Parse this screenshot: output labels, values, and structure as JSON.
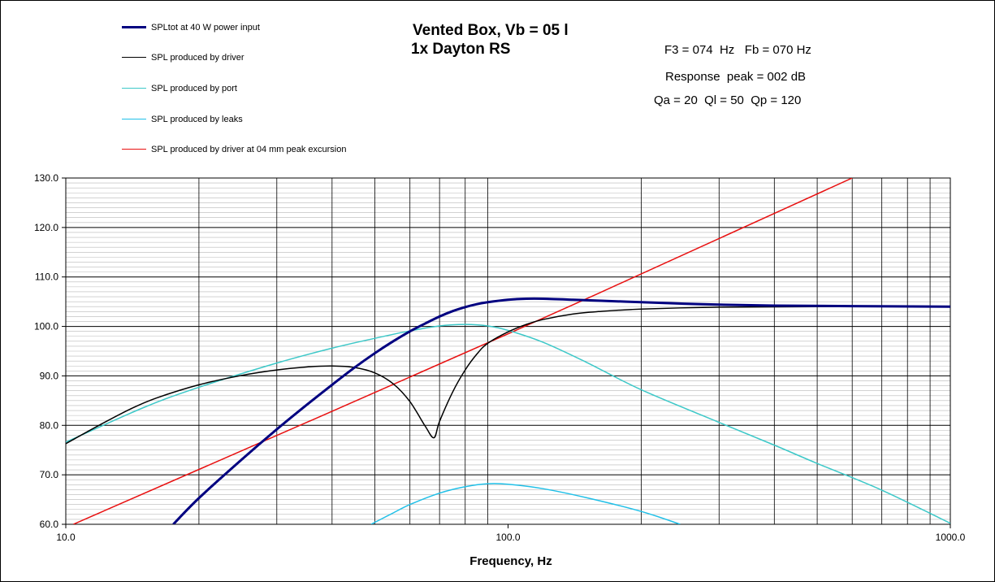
{
  "chart_data": {
    "type": "line",
    "title_line1": "Vented Box, Vb = 05 l",
    "title_line2": "1x Dayton RS",
    "info": {
      "line1": "F3 = 074  Hz   Fb = 070 Hz",
      "line2": "Response  peak = 002 dB",
      "line3": "Qa = 20  Ql = 50  Qp = 120"
    },
    "xlabel": "Frequency, Hz",
    "ylabel": "",
    "xscale": "log",
    "xlim": [
      10,
      1000
    ],
    "ylim": [
      60,
      130
    ],
    "x_tick_labels": [
      "10.0",
      "100.0",
      "1000.0"
    ],
    "y_tick_labels": [
      "60.0",
      "70.0",
      "80.0",
      "90.0",
      "100.0",
      "110.0",
      "120.0",
      "130.0"
    ],
    "grid": true,
    "legend_position": "top-left",
    "series": [
      {
        "name": "SPLtot at 40 W power input",
        "color": "#000080",
        "width": 3,
        "points": [
          [
            17.5,
            60
          ],
          [
            20,
            65.3
          ],
          [
            25,
            73.1
          ],
          [
            30,
            79.2
          ],
          [
            35,
            84.1
          ],
          [
            40,
            88.2
          ],
          [
            45,
            91.7
          ],
          [
            50,
            94.6
          ],
          [
            55,
            97.0
          ],
          [
            60,
            99.0
          ],
          [
            65,
            100.6
          ],
          [
            70,
            102.0
          ],
          [
            75,
            103.1
          ],
          [
            80,
            103.9
          ],
          [
            85,
            104.5
          ],
          [
            90,
            104.9
          ],
          [
            100,
            105.4
          ],
          [
            110,
            105.6
          ],
          [
            120,
            105.6
          ],
          [
            140,
            105.4
          ],
          [
            160,
            105.2
          ],
          [
            200,
            104.9
          ],
          [
            250,
            104.6
          ],
          [
            300,
            104.4
          ],
          [
            400,
            104.2
          ],
          [
            600,
            104.1
          ],
          [
            1000,
            104.0
          ]
        ]
      },
      {
        "name": "SPL produced by driver",
        "color": "#000000",
        "width": 1.5,
        "points": [
          [
            10,
            76.3
          ],
          [
            12,
            80.2
          ],
          [
            14,
            83.3
          ],
          [
            16,
            85.5
          ],
          [
            20,
            88.2
          ],
          [
            25,
            90.1
          ],
          [
            30,
            91.2
          ],
          [
            35,
            91.8
          ],
          [
            40,
            92.0
          ],
          [
            45,
            91.7
          ],
          [
            50,
            90.6
          ],
          [
            55,
            88.4
          ],
          [
            60,
            84.8
          ],
          [
            65,
            79.8
          ],
          [
            68,
            77.5
          ],
          [
            70,
            80.8
          ],
          [
            75,
            86.8
          ],
          [
            80,
            91.2
          ],
          [
            85,
            94.4
          ],
          [
            90,
            96.6
          ],
          [
            100,
            98.9
          ],
          [
            110,
            100.4
          ],
          [
            120,
            101.4
          ],
          [
            140,
            102.5
          ],
          [
            160,
            103.0
          ],
          [
            200,
            103.5
          ],
          [
            300,
            103.9
          ],
          [
            500,
            104.0
          ],
          [
            1000,
            104.0
          ]
        ]
      },
      {
        "name": "SPL produced by port",
        "color": "#3cc8c8",
        "width": 1.5,
        "points": [
          [
            10,
            76.6
          ],
          [
            15,
            83.6
          ],
          [
            20,
            87.7
          ],
          [
            30,
            92.6
          ],
          [
            40,
            95.6
          ],
          [
            50,
            97.6
          ],
          [
            60,
            99.1
          ],
          [
            70,
            100.1
          ],
          [
            80,
            100.4
          ],
          [
            90,
            100.1
          ],
          [
            100,
            99.2
          ],
          [
            120,
            96.8
          ],
          [
            150,
            92.8
          ],
          [
            200,
            87.2
          ],
          [
            300,
            80.6
          ],
          [
            400,
            76.0
          ],
          [
            500,
            72.3
          ],
          [
            700,
            66.9
          ],
          [
            1000,
            60.2
          ]
        ]
      },
      {
        "name": "SPL produced by leaks",
        "color": "#20c0e8",
        "width": 1.5,
        "points": [
          [
            49,
            60
          ],
          [
            55,
            62.3
          ],
          [
            60,
            64.0
          ],
          [
            70,
            66.3
          ],
          [
            80,
            67.6
          ],
          [
            90,
            68.2
          ],
          [
            100,
            68.1
          ],
          [
            120,
            67.2
          ],
          [
            150,
            65.4
          ],
          [
            200,
            62.6
          ],
          [
            245,
            60
          ]
        ]
      },
      {
        "name": "SPL produced by driver at 04 mm peak excursion",
        "color": "#e81010",
        "width": 1.5,
        "points": [
          [
            10.4,
            60
          ],
          [
            100,
            98.5
          ],
          [
            600,
            130
          ]
        ]
      }
    ]
  }
}
